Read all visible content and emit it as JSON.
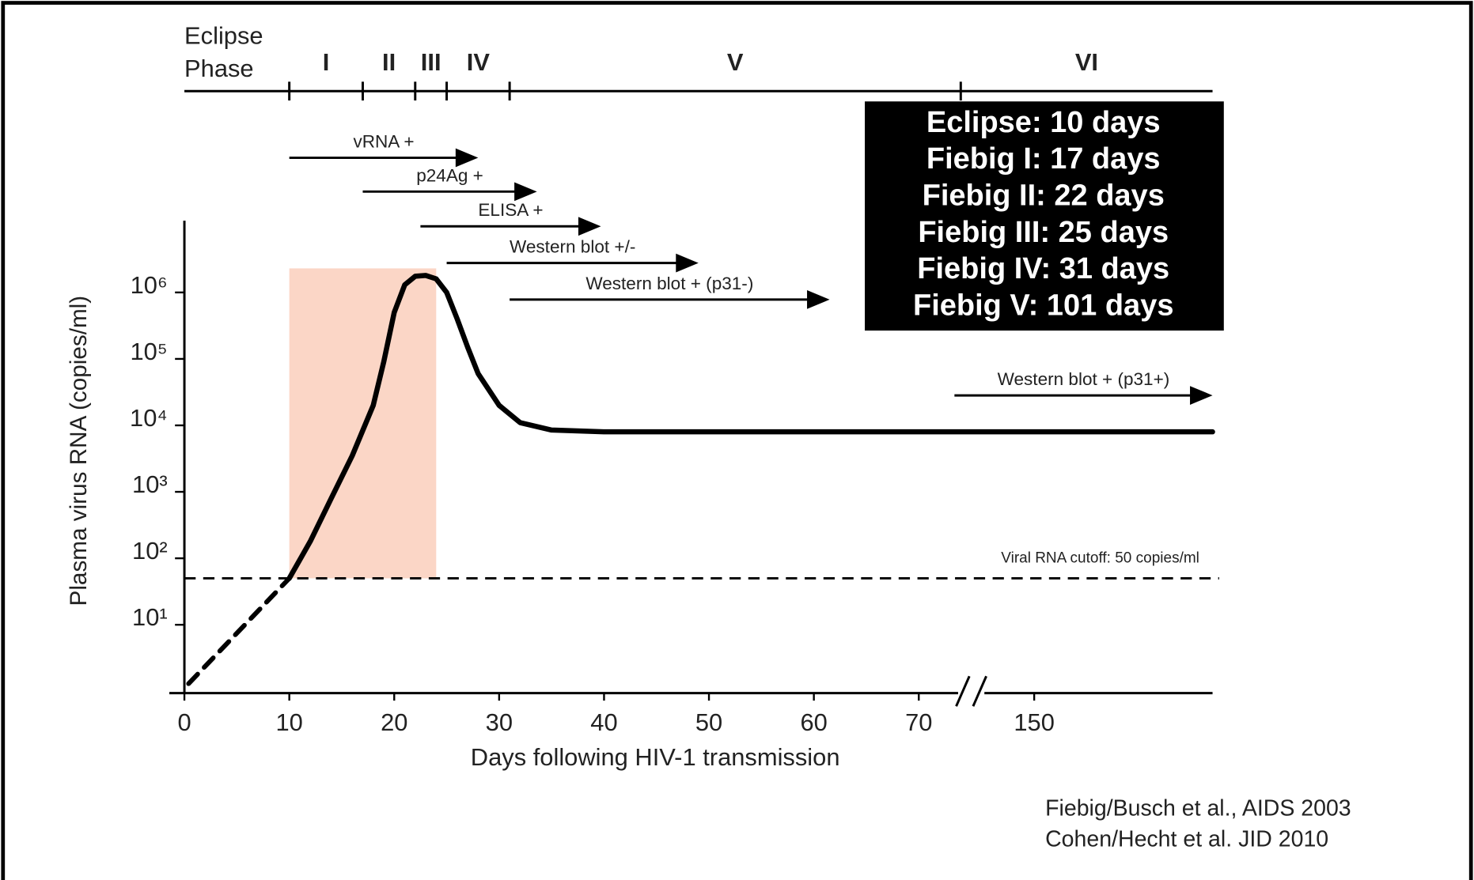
{
  "chart_data": {
    "type": "line",
    "ylabel": "Plasma virus RNA (copies/ml)",
    "xlabel": "Days following HIV-1 transmission",
    "log_y": true,
    "ylim": [
      1,
      12000000
    ],
    "yticks": [
      {
        "value": 10,
        "label": "10¹"
      },
      {
        "value": 100,
        "label": "10²"
      },
      {
        "value": 1000,
        "label": "10³"
      },
      {
        "value": 10000,
        "label": "10⁴"
      },
      {
        "value": 100000,
        "label": "10⁵"
      },
      {
        "value": 1000000,
        "label": "10⁶"
      }
    ],
    "xlim": [
      0,
      167
    ],
    "xbreak": [
      75,
      144
    ],
    "xticks": [
      0,
      10,
      20,
      30,
      40,
      50,
      60,
      70,
      150
    ],
    "series": [
      {
        "style": "dashed",
        "color": "#000000",
        "x": [
          0.4,
          10
        ],
        "values": [
          1.3,
          50
        ]
      },
      {
        "style": "solid",
        "color": "#000000",
        "x": [
          10,
          12,
          14,
          16,
          18,
          19,
          20,
          21,
          22,
          23,
          24,
          25,
          26,
          27,
          28,
          30,
          32,
          35,
          40,
          167
        ],
        "values": [
          50,
          180,
          800,
          3500,
          20000,
          90000,
          500000,
          1300000,
          1750000,
          1800000,
          1600000,
          1000000,
          400000,
          150000,
          60000,
          20000,
          11000,
          8500,
          8000,
          8000
        ]
      }
    ],
    "shade": {
      "x": [
        10,
        24
      ],
      "y": [
        50,
        2300000
      ],
      "color": "#fbd6c6"
    },
    "hline": {
      "value": 50,
      "label": "Viral RNA cutoff: 50 copies/ml"
    },
    "eclipse_label": [
      "Eclipse",
      "Phase"
    ],
    "phases": [
      "I",
      "II",
      "III",
      "IV",
      "V",
      "VI"
    ],
    "phase_boundaries": [
      10,
      17,
      22,
      25,
      31,
      74
    ],
    "arrows": [
      {
        "label": "vRNA +",
        "start": 10,
        "end": 28
      },
      {
        "label": "p24Ag +",
        "start": 17,
        "end": 33.6
      },
      {
        "label": "ELISA +",
        "start": 22.5,
        "end": 39.7
      },
      {
        "label": "Western blot +/-",
        "start": 25,
        "end": 49
      },
      {
        "label": "Western blot + (p31-)",
        "start": 31,
        "end": 61.5
      },
      {
        "label": "Western blot + (p31+)",
        "start": 73.4,
        "end": 167
      }
    ],
    "box_lines": [
      "Eclipse: 10 days",
      "Fiebig I: 17 days",
      "Fiebig II: 22 days",
      "Fiebig III: 25 days",
      "Fiebig IV: 31 days",
      "Fiebig V: 101 days"
    ],
    "citations": [
      "Fiebig/Busch et al., AIDS 2003",
      "Cohen/Hecht et al. JID 2010"
    ]
  }
}
